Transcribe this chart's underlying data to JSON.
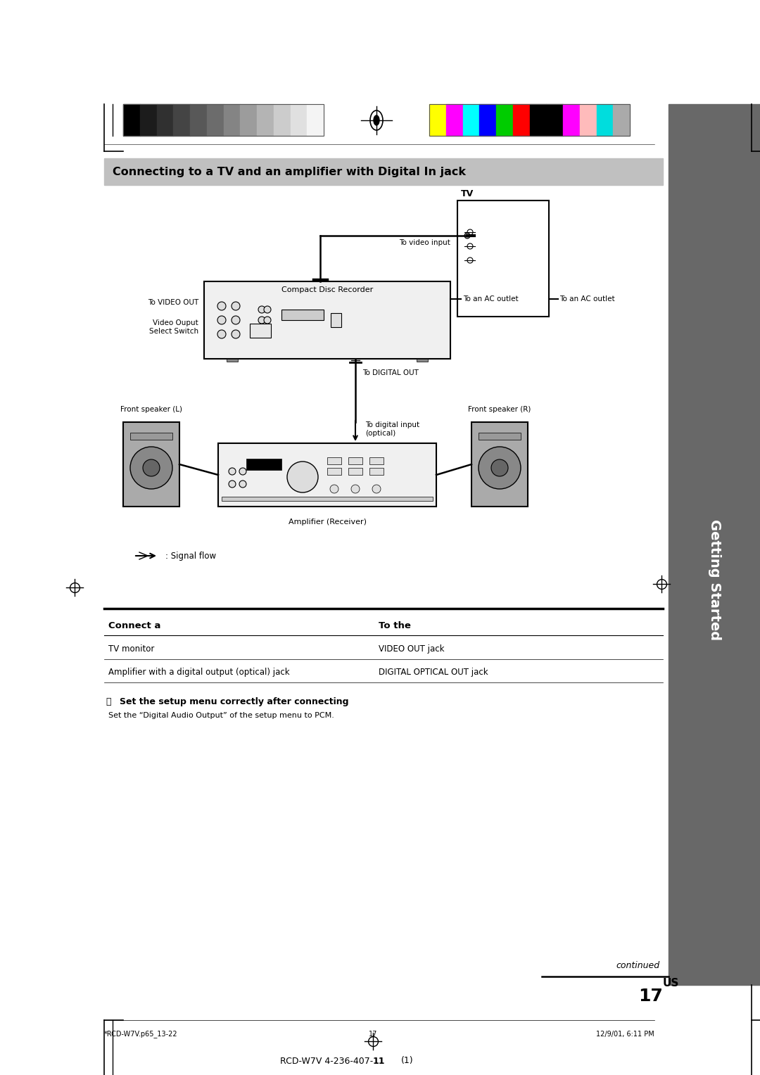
{
  "page_width": 10.8,
  "page_height": 15.28,
  "bg_color": "#ffffff",
  "title": "Connecting to a TV and an amplifier with Digital In jack",
  "title_bg": "#c0c0c0",
  "sidebar_color": "#686868",
  "sidebar_text": "Getting Started",
  "header_bar_colors_left": [
    "#000000",
    "#1c1c1c",
    "#303030",
    "#444444",
    "#585858",
    "#6c6c6c",
    "#848484",
    "#9c9c9c",
    "#b4b4b4",
    "#cccccc",
    "#e0e0e0",
    "#f4f4f4"
  ],
  "header_bar_colors_right": [
    "#ffff00",
    "#ff00ff",
    "#00ffff",
    "#0000ff",
    "#00cc00",
    "#ff0000",
    "#000000",
    "#000000",
    "#ff00ff",
    "#ffbbbb",
    "#00dddd",
    "#aaaaaa"
  ],
  "connect_table_headers": [
    "Connect a",
    "To the"
  ],
  "connect_table_rows": [
    [
      "TV monitor",
      "VIDEO OUT jack"
    ],
    [
      "Amplifier with a digital output (optical) jack",
      "DIGITAL OPTICAL OUT jack"
    ]
  ],
  "tip_title": "Set the setup menu correctly after connecting",
  "tip_body": "Set the “Digital Audio Output” of the setup menu to PCM.",
  "continued_text": "continued",
  "page_num": "17",
  "page_num_sup": "US",
  "footer_left": "*RCD-W7V.p65_13-22",
  "footer_center": "17",
  "footer_right": "12/9/01, 6:11 PM",
  "bottom_text": "RCD-W7V 4-236-407-",
  "bottom_text_bold": "11",
  "bottom_text_end": "(1)"
}
